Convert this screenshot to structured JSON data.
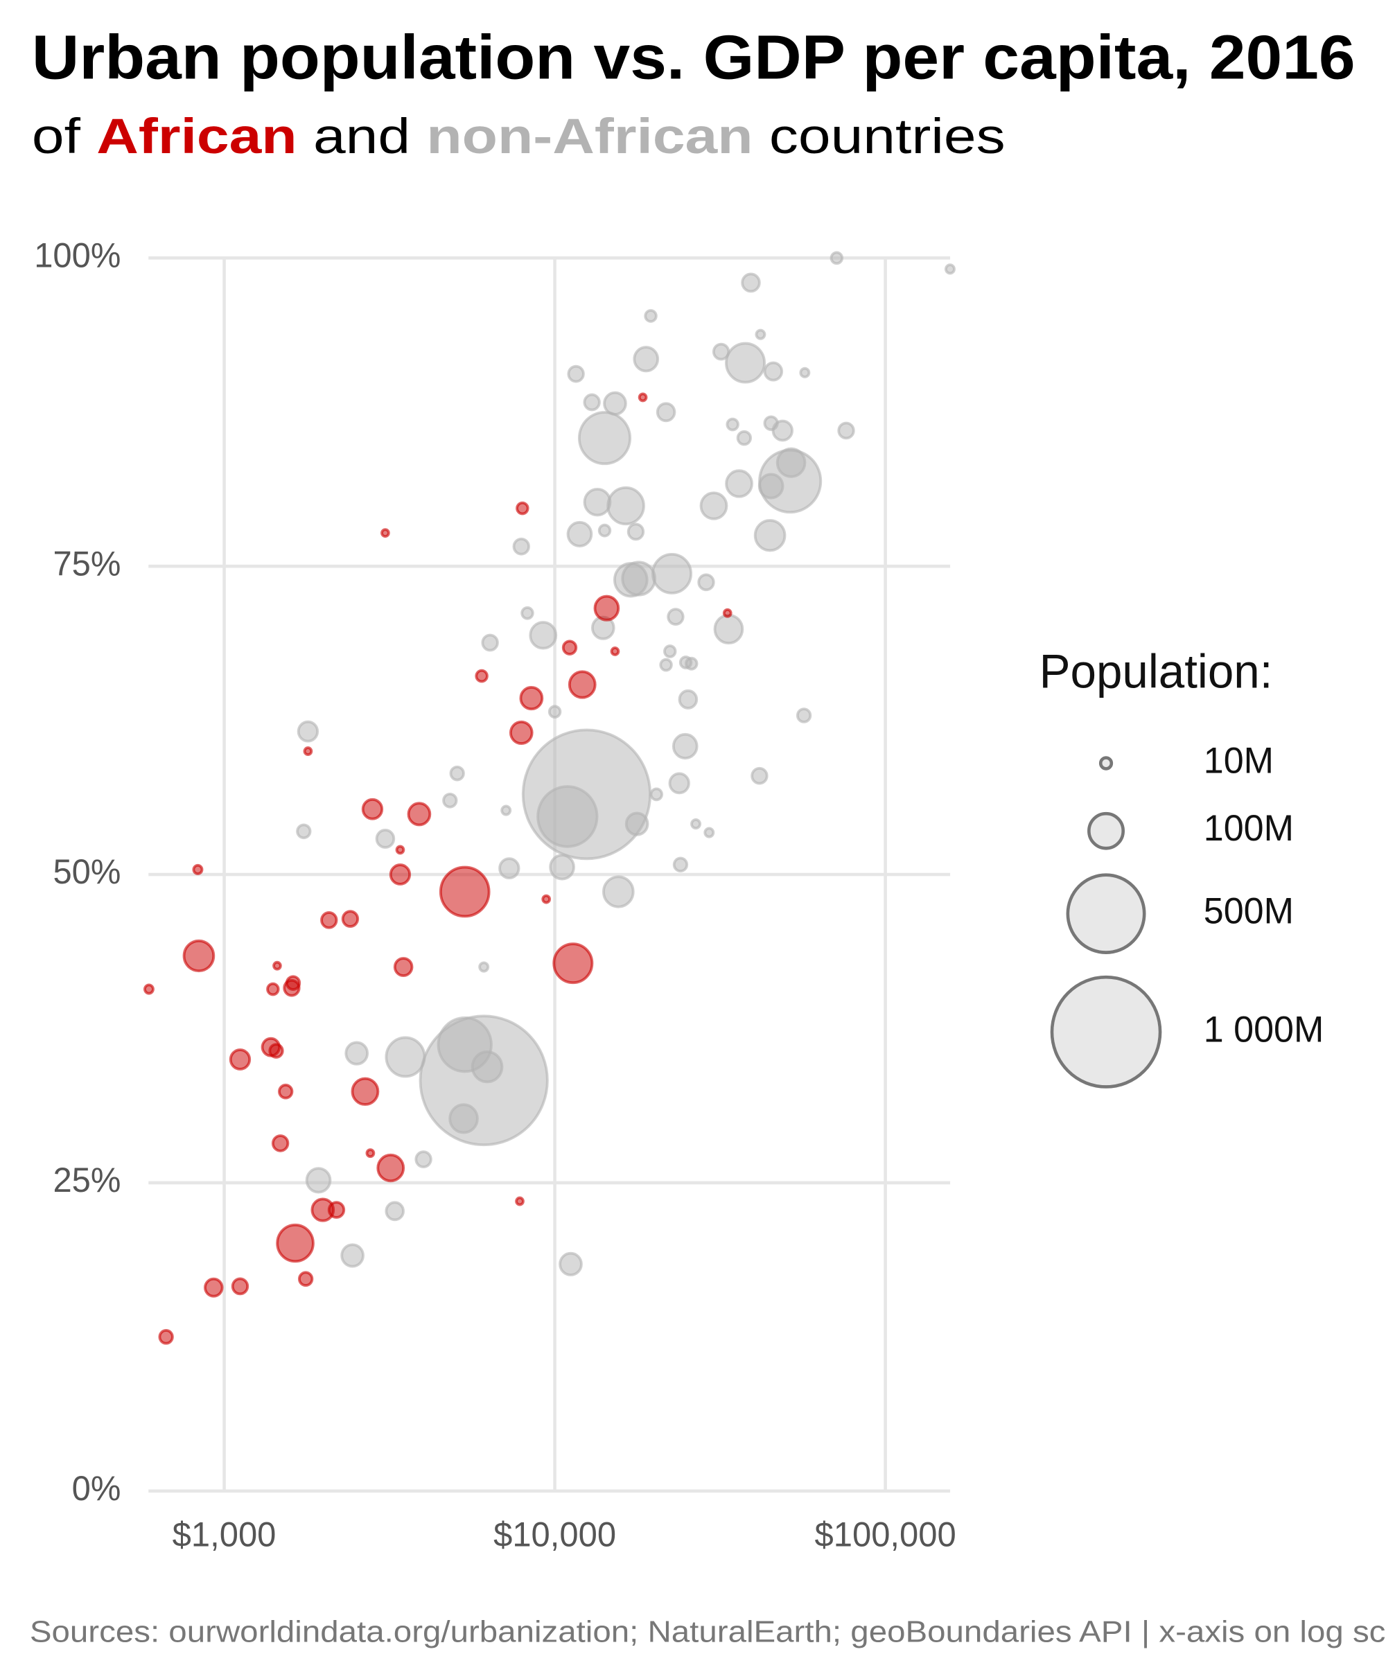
{
  "chart_data": {
    "type": "bubble",
    "title": "Urban population vs. GDP per capita, 2016",
    "subtitle_prefix": "of",
    "subtitle_middle": "and",
    "subtitle_suffix": "countries",
    "source": "Sources: ourworldindata.org/urbanization; NaturalEarth; geoBoundaries API | x-axis on log scale",
    "x_scale": "log",
    "grid": true,
    "xlim": [
      590,
      157000
    ],
    "ylim": [
      0,
      100
    ],
    "xticks": [
      {
        "value": 1000,
        "label": "$1,000"
      },
      {
        "value": 10000,
        "label": "$10,000"
      },
      {
        "value": 100000,
        "label": "$100,000"
      }
    ],
    "yticks": [
      {
        "value": 0,
        "label": "0%"
      },
      {
        "value": 25,
        "label": "25%"
      },
      {
        "value": 50,
        "label": "50%"
      },
      {
        "value": 75,
        "label": "75%"
      },
      {
        "value": 100,
        "label": "100%"
      }
    ],
    "size_legend": {
      "title": "Population:",
      "values": [
        {
          "value": 10,
          "label": "10M"
        },
        {
          "value": 100,
          "label": "100M"
        },
        {
          "value": 500,
          "label": "500M"
        },
        {
          "value": 1000,
          "label": "1 000M"
        }
      ]
    },
    "series": [
      {
        "name": "non-African",
        "color": "#b3b3b3",
        "x": [
          1792,
          1740,
          1928,
          2443,
          2516,
          3070,
          3281,
          3532,
          4006,
          4818,
          5066,
          5300,
          5343,
          6100,
          6245,
          6100,
          6370,
          7120,
          7280,
          7920,
          8260,
          9220,
          10000,
          10520,
          10920,
          11170,
          12480,
          11590,
          11890,
          12950,
          14150,
          13450,
          14000,
          14150,
          15210,
          15570,
          16400,
          16980,
          17720,
          17940,
          17580,
          18880,
          19510,
          20300,
          21700,
          21700,
          22300,
          22600,
          23200,
          23800,
          24800,
          24000,
          24900,
          25300,
          25900,
          26700,
          28700,
          30260,
          29300,
          31850,
          33560,
          34500,
          36100,
          37400,
          37700,
          39180,
          41900,
          41600,
          44760,
          45100,
          45800,
          45100,
          48870,
          51860,
          51500,
          57050,
          56700,
          71230,
          76100,
          156900
        ],
        "values": [
          61.6,
          53.5,
          25.2,
          19.1,
          35.5,
          52.9,
          22.7,
          35.2,
          26.9,
          56.0,
          58.2,
          30.2,
          36.2,
          33.3,
          34.4,
          42.5,
          68.8,
          55.2,
          50.5,
          76.6,
          71.2,
          69.4,
          63.2,
          50.6,
          54.7,
          18.4,
          56.5,
          90.6,
          77.6,
          88.3,
          85.4,
          80.2,
          70.0,
          77.9,
          88.2,
          48.6,
          79.9,
          73.9,
          54.1,
          74.0,
          77.8,
          91.8,
          95.3,
          56.5,
          87.5,
          67.0,
          68.1,
          74.4,
          70.9,
          57.4,
          60.4,
          50.8,
          67.2,
          64.2,
          67.1,
          54.1,
          73.7,
          79.9,
          53.4,
          92.4,
          69.9,
          86.5,
          81.7,
          85.4,
          91.5,
          98.0,
          93.8,
          58.0,
          77.5,
          86.6,
          90.8,
          81.5,
          86.0,
          83.4,
          81.9,
          90.7,
          62.9,
          100,
          86.0,
          99.1
        ],
        "sizes": [
          31,
          14,
          47,
          39,
          39,
          25,
          25,
          125,
          19,
          14,
          14,
          65,
          240,
          1380,
          75,
          6,
          19,
          6,
          31,
          19,
          10,
          56,
          10,
          47,
          300,
          39,
          1380,
          19,
          47,
          19,
          220,
          56,
          39,
          10,
          39,
          75,
          110,
          90,
          39,
          90,
          19,
          47,
          10,
          10,
          25,
          10,
          10,
          125,
          19,
          31,
          47,
          14,
          10,
          25,
          10,
          6,
          19,
          56,
          6,
          19,
          65,
          10,
          56,
          14,
          125,
          25,
          6,
          19,
          75,
          14,
          25,
          47,
          31,
          65,
          320,
          6,
          14,
          10,
          19,
          6
        ]
      },
      {
        "name": "African",
        "color": "#cc0000",
        "x": [
          592,
          667,
          832,
          838,
          929,
          1117,
          1117,
          1384,
          1436,
          1404,
          1446,
          1616,
          1600,
          1479,
          1534,
          1640,
          1764,
          1792,
          1987,
          2185,
          2075,
          2406,
          2669,
          2767,
          2808,
          3070,
          3188,
          3406,
          3406,
          3484,
          3889,
          5343,
          6010,
          7834,
          7920,
          7980,
          8497,
          9420,
          11090,
          11350,
          12110,
          14350,
          15210,
          18460,
          33290
        ],
        "values": [
          40.7,
          12.5,
          50.4,
          43.4,
          16.5,
          35.0,
          16.6,
          36.0,
          35.7,
          40.7,
          42.6,
          41.2,
          40.8,
          28.2,
          32.4,
          20.1,
          17.2,
          60.0,
          22.8,
          22.8,
          46.3,
          46.4,
          32.4,
          27.4,
          55.3,
          77.7,
          26.2,
          52.0,
          50.0,
          42.5,
          54.9,
          48.6,
          66.1,
          23.5,
          61.5,
          79.7,
          64.3,
          48.0,
          68.4,
          42.8,
          65.4,
          71.6,
          68.1,
          88.7,
          71.2
        ],
        "sizes": [
          6,
          14,
          6,
          75,
          25,
          31,
          19,
          25,
          14,
          10,
          4,
          14,
          19,
          19,
          14,
          110,
          14,
          4,
          39,
          19,
          19,
          19,
          56,
          4,
          31,
          4,
          56,
          4,
          31,
          25,
          39,
          200,
          10,
          4,
          39,
          10,
          39,
          4,
          14,
          125,
          56,
          47,
          4,
          4,
          4
        ]
      }
    ]
  }
}
